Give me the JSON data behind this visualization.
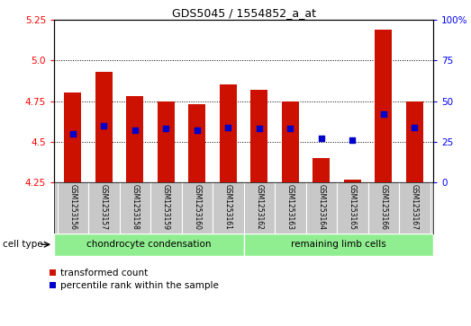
{
  "title": "GDS5045 / 1554852_a_at",
  "samples": [
    "GSM1253156",
    "GSM1253157",
    "GSM1253158",
    "GSM1253159",
    "GSM1253160",
    "GSM1253161",
    "GSM1253162",
    "GSM1253163",
    "GSM1253164",
    "GSM1253165",
    "GSM1253166",
    "GSM1253167"
  ],
  "red_values": [
    4.8,
    4.93,
    4.78,
    4.75,
    4.73,
    4.85,
    4.82,
    4.75,
    4.4,
    4.27,
    5.19,
    4.75
  ],
  "blue_values_pct": [
    30,
    35,
    32,
    33,
    32,
    34,
    33,
    33,
    27,
    26,
    42,
    34
  ],
  "y_min": 4.25,
  "y_max": 5.25,
  "y_ticks": [
    4.25,
    4.5,
    4.75,
    5.0,
    5.25
  ],
  "y_ticks_right": [
    0,
    25,
    50,
    75,
    100
  ],
  "bar_color": "#cc1100",
  "dot_color": "#0000cc",
  "bar_bottom": 4.25,
  "group1_label": "chondrocyte condensation",
  "group2_label": "remaining limb cells",
  "group1_count": 6,
  "cell_type_label": "cell type",
  "legend_red": "transformed count",
  "legend_blue": "percentile rank within the sample",
  "label_bg": "#c8c8c8",
  "group_bg": "#90ee90",
  "plot_bg": "#ffffff"
}
